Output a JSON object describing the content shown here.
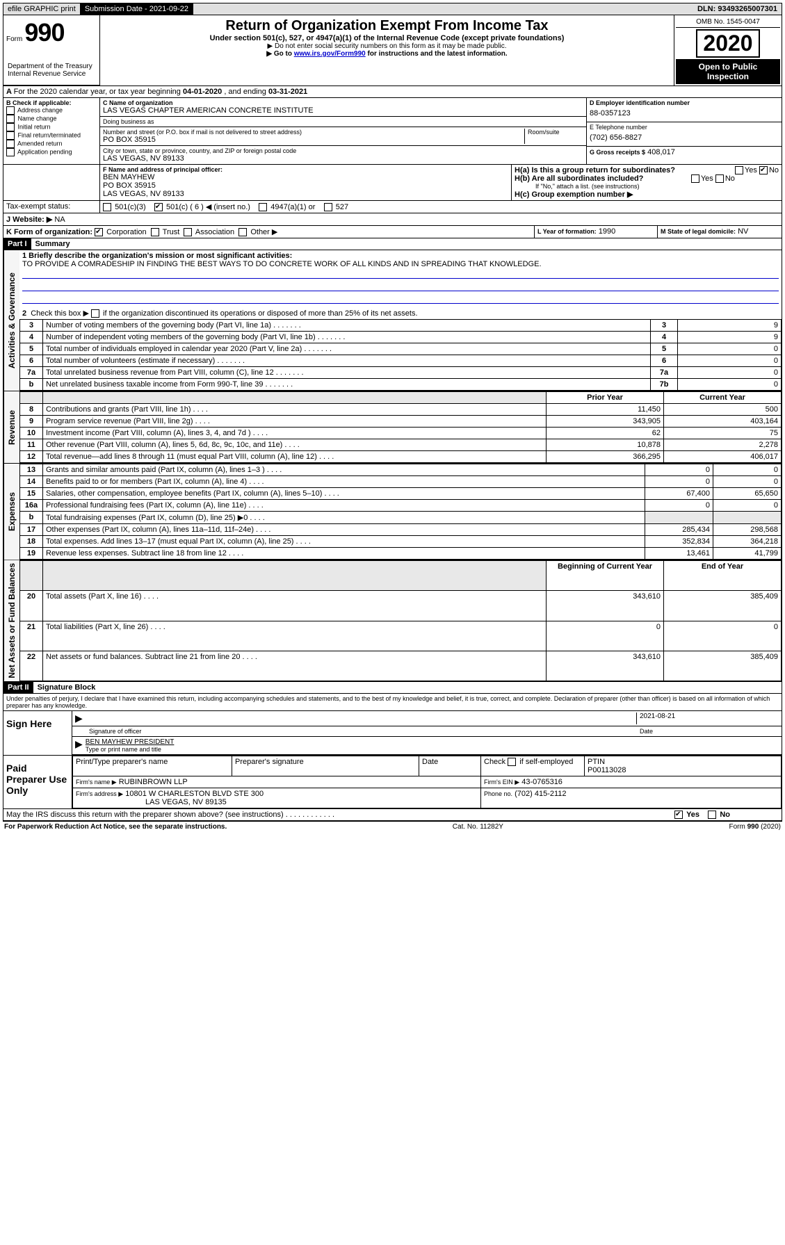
{
  "topbar": {
    "efile": "efile GRAPHIC print",
    "submission_label": "Submission Date - 2021-09-22",
    "dln_label": "DLN: 93493265007301"
  },
  "header": {
    "form_prefix": "Form",
    "form_number": "990",
    "dept": "Department of the Treasury\nInternal Revenue Service",
    "title": "Return of Organization Exempt From Income Tax",
    "subtitle": "Under section 501(c), 527, or 4947(a)(1) of the Internal Revenue Code (except private foundations)",
    "note1": "▶ Do not enter social security numbers on this form as it may be made public.",
    "note2_pre": "▶ Go to ",
    "note2_link": "www.irs.gov/Form990",
    "note2_post": " for instructions and the latest information.",
    "omb": "OMB No. 1545-0047",
    "year": "2020",
    "open_public": "Open to Public Inspection"
  },
  "period": {
    "text_pre": "For the 2020 calendar year, or tax year beginning ",
    "begin": "04-01-2020",
    "mid": " , and ending ",
    "end": "03-31-2021"
  },
  "boxB": {
    "label": "B Check if applicable:",
    "items": [
      "Address change",
      "Name change",
      "Initial return",
      "Final return/terminated",
      "Amended return",
      "Application pending"
    ]
  },
  "boxC": {
    "name_label": "C Name of organization",
    "name": "LAS VEGAS CHAPTER AMERICAN CONCRETE INSTITUTE",
    "dba_label": "Doing business as",
    "dba": "",
    "addr_label": "Number and street (or P.O. box if mail is not delivered to street address)",
    "room_label": "Room/suite",
    "addr": "PO BOX 35915",
    "city_label": "City or town, state or province, country, and ZIP or foreign postal code",
    "city": "LAS VEGAS, NV  89133"
  },
  "boxD": {
    "label": "D Employer identification number",
    "value": "88-0357123"
  },
  "boxE": {
    "label": "E Telephone number",
    "value": "(702) 656-8827"
  },
  "boxG": {
    "label": "G Gross receipts $",
    "value": "408,017"
  },
  "boxF": {
    "label": "F Name and address of principal officer:",
    "name": "BEN MAYHEW",
    "addr1": "PO BOX 35915",
    "addr2": "LAS VEGAS, NV  89133"
  },
  "boxH": {
    "a_label": "H(a)  Is this a group return for subordinates?",
    "a_yes": "Yes",
    "a_no": "No",
    "b_label": "H(b)  Are all subordinates included?",
    "b_note": "If \"No,\" attach a list. (see instructions)",
    "c_label": "H(c)  Group exemption number ▶"
  },
  "taxExempt": {
    "label": "Tax-exempt status:",
    "o1": "501(c)(3)",
    "o2": "501(c) ( 6 ) ◀ (insert no.)",
    "o3": "4947(a)(1) or",
    "o4": "527"
  },
  "boxJ": {
    "label": "J   Website: ▶",
    "value": "NA"
  },
  "boxK": {
    "label": "K Form of organization:",
    "o1": "Corporation",
    "o2": "Trust",
    "o3": "Association",
    "o4": "Other ▶"
  },
  "boxL": {
    "label": "L Year of formation:",
    "value": "1990"
  },
  "boxM": {
    "label": "M State of legal domicile:",
    "value": "NV"
  },
  "part1": {
    "header": "Part I",
    "title": "Summary",
    "sections": {
      "gov_label": "Activities & Governance",
      "rev_label": "Revenue",
      "exp_label": "Expenses",
      "net_label": "Net Assets or Fund Balances"
    },
    "q1_label": "1  Briefly describe the organization's mission or most significant activities:",
    "q1_value": "TO PROVIDE A COMRADESHIP IN FINDING THE BEST WAYS TO DO CONCRETE WORK OF ALL KINDS AND IN SPREADING THAT KNOWLEDGE.",
    "q2_label": "2   Check this box ▶          if the organization discontinued its operations or disposed of more than 25% of its net assets.",
    "prior_year_header": "Prior Year",
    "current_year_header": "Current Year",
    "begin_year_header": "Beginning of Current Year",
    "end_year_header": "End of Year",
    "lines_single": [
      {
        "n": "3",
        "desc": "Number of voting members of the governing body (Part VI, line 1a)",
        "box": "3",
        "val": "9"
      },
      {
        "n": "4",
        "desc": "Number of independent voting members of the governing body (Part VI, line 1b)",
        "box": "4",
        "val": "9"
      },
      {
        "n": "5",
        "desc": "Total number of individuals employed in calendar year 2020 (Part V, line 2a)",
        "box": "5",
        "val": "0"
      },
      {
        "n": "6",
        "desc": "Total number of volunteers (estimate if necessary)",
        "box": "6",
        "val": "0"
      },
      {
        "n": "7a",
        "desc": "Total unrelated business revenue from Part VIII, column (C), line 12",
        "box": "7a",
        "val": "0"
      },
      {
        "n": " b",
        "desc": "Net unrelated business taxable income from Form 990-T, line 39",
        "box": "7b",
        "val": "0"
      }
    ],
    "lines_rev": [
      {
        "n": "8",
        "desc": "Contributions and grants (Part VIII, line 1h)",
        "py": "11,450",
        "cy": "500"
      },
      {
        "n": "9",
        "desc": "Program service revenue (Part VIII, line 2g)",
        "py": "343,905",
        "cy": "403,164"
      },
      {
        "n": "10",
        "desc": "Investment income (Part VIII, column (A), lines 3, 4, and 7d )",
        "py": "62",
        "cy": "75"
      },
      {
        "n": "11",
        "desc": "Other revenue (Part VIII, column (A), lines 5, 6d, 8c, 9c, 10c, and 11e)",
        "py": "10,878",
        "cy": "2,278"
      },
      {
        "n": "12",
        "desc": "Total revenue—add lines 8 through 11 (must equal Part VIII, column (A), line 12)",
        "py": "366,295",
        "cy": "406,017"
      }
    ],
    "lines_exp": [
      {
        "n": "13",
        "desc": "Grants and similar amounts paid (Part IX, column (A), lines 1–3 )",
        "py": "0",
        "cy": "0"
      },
      {
        "n": "14",
        "desc": "Benefits paid to or for members (Part IX, column (A), line 4)",
        "py": "0",
        "cy": "0"
      },
      {
        "n": "15",
        "desc": "Salaries, other compensation, employee benefits (Part IX, column (A), lines 5–10)",
        "py": "67,400",
        "cy": "65,650"
      },
      {
        "n": "16a",
        "desc": "Professional fundraising fees (Part IX, column (A), line 11e)",
        "py": "0",
        "cy": "0"
      },
      {
        "n": "b",
        "desc": "Total fundraising expenses (Part IX, column (D), line 25) ▶0",
        "py": "",
        "cy": ""
      },
      {
        "n": "17",
        "desc": "Other expenses (Part IX, column (A), lines 11a–11d, 11f–24e)",
        "py": "285,434",
        "cy": "298,568"
      },
      {
        "n": "18",
        "desc": "Total expenses. Add lines 13–17 (must equal Part IX, column (A), line 25)",
        "py": "352,834",
        "cy": "364,218"
      },
      {
        "n": "19",
        "desc": "Revenue less expenses. Subtract line 18 from line 12",
        "py": "13,461",
        "cy": "41,799"
      }
    ],
    "lines_net": [
      {
        "n": "20",
        "desc": "Total assets (Part X, line 16)",
        "py": "343,610",
        "cy": "385,409"
      },
      {
        "n": "21",
        "desc": "Total liabilities (Part X, line 26)",
        "py": "0",
        "cy": "0"
      },
      {
        "n": "22",
        "desc": "Net assets or fund balances. Subtract line 21 from line 20",
        "py": "343,610",
        "cy": "385,409"
      }
    ]
  },
  "part2": {
    "header": "Part II",
    "title": "Signature Block",
    "declaration": "Under penalties of perjury, I declare that I have examined this return, including accompanying schedules and statements, and to the best of my knowledge and belief, it is true, correct, and complete. Declaration of preparer (other than officer) is based on all information of which preparer has any knowledge.",
    "sign_here": "Sign Here",
    "sig_officer_label": "Signature of officer",
    "sig_date": "2021-08-21",
    "date_label": "Date",
    "officer_name": "BEN MAYHEW PRESIDENT",
    "officer_name_label": "Type or print name and title",
    "paid_label": "Paid Preparer Use Only",
    "prep_name_label": "Print/Type preparer's name",
    "prep_sig_label": "Preparer's signature",
    "prep_date_label": "Date",
    "check_self": "Check          if self-employed",
    "ptin_label": "PTIN",
    "ptin": "P00113028",
    "firm_name_label": "Firm's name     ▶",
    "firm_name": "RUBINBROWN LLP",
    "firm_ein_label": "Firm's EIN ▶",
    "firm_ein": "43-0765316",
    "firm_addr_label": "Firm's address ▶",
    "firm_addr": "10801 W CHARLESTON BLVD STE 300",
    "firm_city": "LAS VEGAS, NV  89135",
    "firm_phone_label": "Phone no.",
    "firm_phone": "(702) 415-2112",
    "discuss": "May the IRS discuss this return with the preparer shown above? (see instructions)",
    "yes": "Yes",
    "no": "No"
  },
  "footer": {
    "pra": "For Paperwork Reduction Act Notice, see the separate instructions.",
    "cat": "Cat. No. 11282Y",
    "form": "Form 990 (2020)"
  }
}
